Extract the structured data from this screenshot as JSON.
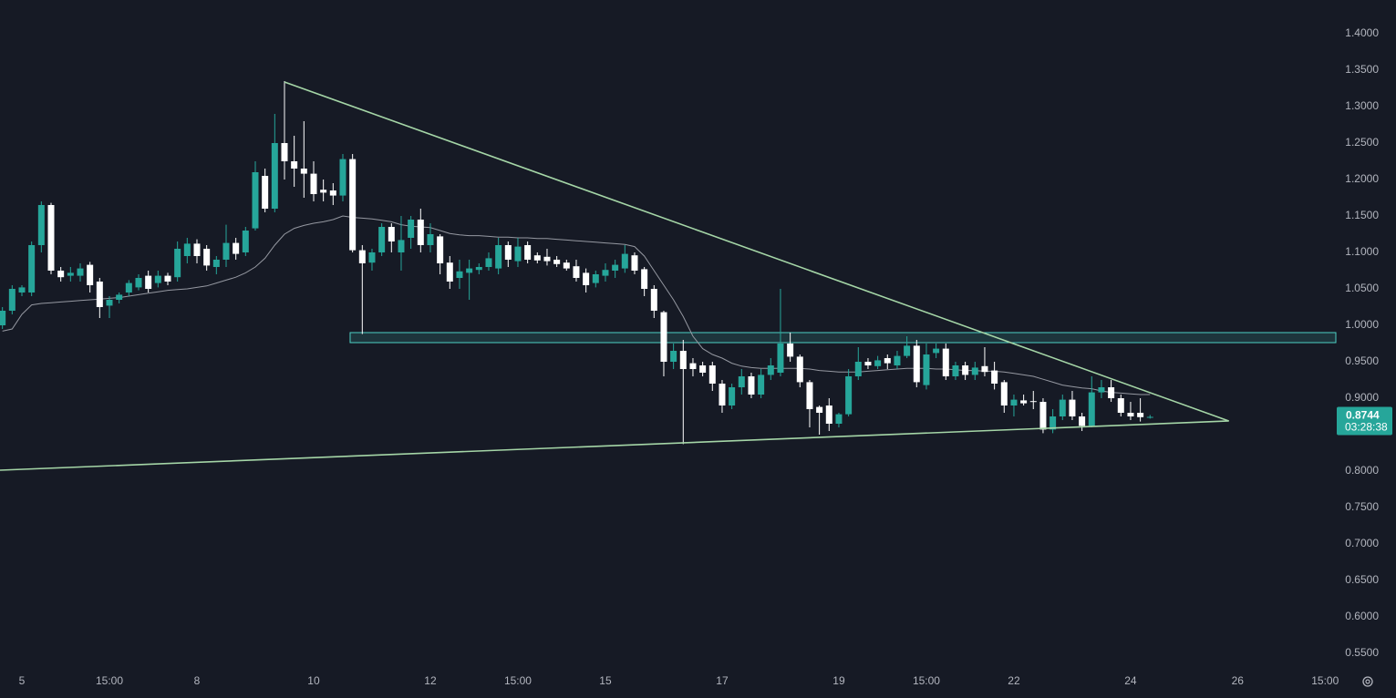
{
  "chart_data": {
    "type": "candlestick",
    "x": [
      -2,
      -1,
      0,
      1,
      2,
      3,
      4,
      5,
      6,
      7,
      8,
      9,
      10,
      11,
      12,
      13,
      14,
      15,
      16,
      17,
      18,
      19,
      20,
      21,
      22,
      23,
      24,
      25,
      26,
      27,
      28,
      29,
      30,
      31,
      32,
      33,
      34,
      35,
      36,
      37,
      38,
      39,
      40,
      41,
      42,
      43,
      44,
      45,
      46,
      47,
      48,
      49,
      50,
      51,
      52,
      53,
      54,
      55,
      56,
      57,
      58,
      59,
      60,
      61,
      62,
      63,
      64,
      65,
      66,
      67,
      68,
      69,
      70,
      71,
      72,
      73,
      74,
      75,
      76,
      77,
      78,
      79,
      80,
      81,
      82,
      83,
      84,
      85,
      86,
      87,
      88,
      89,
      90,
      91,
      92,
      93,
      94,
      95,
      96,
      97,
      98,
      99,
      100,
      101,
      102,
      103,
      104,
      105,
      106,
      107,
      108,
      109,
      110,
      111,
      112,
      113,
      114,
      115,
      116
    ],
    "open": [
      1.0,
      1.02,
      1.045,
      1.045,
      1.11,
      1.165,
      1.075,
      1.068,
      1.068,
      1.083,
      1.06,
      1.027,
      1.035,
      1.045,
      1.052,
      1.068,
      1.058,
      1.068,
      1.066,
      1.095,
      1.112,
      1.105,
      1.08,
      1.09,
      1.113,
      1.1,
      1.133,
      1.205,
      1.16,
      1.25,
      1.225,
      1.215,
      1.208,
      1.186,
      1.185,
      1.178,
      1.228,
      1.103,
      1.086,
      1.1,
      1.135,
      1.1,
      1.12,
      1.145,
      1.11,
      1.122,
      1.086,
      1.065,
      1.072,
      1.076,
      1.08,
      1.078,
      1.11,
      1.088,
      1.11,
      1.096,
      1.094,
      1.09,
      1.086,
      1.081,
      1.072,
      1.058,
      1.068,
      1.075,
      1.078,
      1.096,
      1.077,
      1.05,
      1.018,
      0.95,
      0.965,
      0.948,
      0.945,
      0.945,
      0.92,
      0.89,
      0.915,
      0.93,
      0.905,
      0.932,
      0.935,
      0.975,
      0.957,
      0.922,
      0.888,
      0.89,
      0.865,
      0.878,
      0.93,
      0.95,
      0.944,
      0.955,
      0.945,
      0.958,
      0.972,
      0.918,
      0.962,
      0.968,
      0.93,
      0.945,
      0.932,
      0.944,
      0.938,
      0.922,
      0.89,
      0.897,
      0.896,
      0.895,
      0.857,
      0.875,
      0.898,
      0.875,
      0.862,
      0.908,
      0.915,
      0.9,
      0.88,
      0.88,
      0.874
    ],
    "high": [
      1.025,
      1.055,
      1.055,
      1.115,
      1.17,
      1.168,
      1.08,
      1.08,
      1.085,
      1.087,
      1.065,
      1.04,
      1.045,
      1.062,
      1.07,
      1.075,
      1.075,
      1.072,
      1.115,
      1.12,
      1.118,
      1.11,
      1.095,
      1.138,
      1.12,
      1.135,
      1.225,
      1.215,
      1.29,
      1.335,
      1.26,
      1.28,
      1.225,
      1.2,
      1.195,
      1.235,
      1.235,
      1.11,
      1.105,
      1.14,
      1.14,
      1.15,
      1.15,
      1.16,
      1.14,
      1.125,
      1.095,
      1.09,
      1.09,
      1.085,
      1.1,
      1.12,
      1.115,
      1.12,
      1.115,
      1.1,
      1.105,
      1.095,
      1.09,
      1.09,
      1.078,
      1.075,
      1.085,
      1.09,
      1.11,
      1.1,
      1.08,
      1.055,
      1.02,
      0.975,
      0.98,
      0.955,
      0.95,
      0.95,
      0.925,
      0.92,
      0.94,
      0.935,
      0.94,
      0.955,
      1.05,
      0.99,
      0.96,
      0.925,
      0.89,
      0.9,
      0.88,
      0.94,
      0.97,
      0.955,
      0.958,
      0.96,
      0.965,
      0.985,
      0.98,
      0.975,
      0.975,
      0.975,
      0.95,
      0.95,
      0.95,
      0.97,
      0.95,
      0.925,
      0.905,
      0.905,
      0.91,
      0.9,
      0.885,
      0.905,
      0.91,
      0.88,
      0.93,
      0.925,
      0.925,
      0.905,
      0.895,
      0.9,
      0.877
    ],
    "low": [
      0.995,
      1.015,
      1.04,
      1.04,
      1.1,
      1.07,
      1.06,
      1.06,
      1.06,
      1.045,
      1.01,
      1.01,
      1.03,
      1.04,
      1.048,
      1.045,
      1.052,
      1.055,
      1.06,
      1.085,
      1.085,
      1.075,
      1.07,
      1.08,
      1.09,
      1.095,
      1.13,
      1.155,
      1.155,
      1.2,
      1.19,
      1.175,
      1.17,
      1.17,
      1.165,
      1.17,
      1.1,
      0.988,
      1.075,
      1.095,
      1.1,
      1.075,
      1.105,
      1.1,
      1.1,
      1.07,
      1.05,
      1.05,
      1.035,
      1.07,
      1.075,
      1.07,
      1.08,
      1.08,
      1.085,
      1.085,
      1.082,
      1.08,
      1.075,
      1.06,
      1.045,
      1.052,
      1.06,
      1.065,
      1.072,
      1.07,
      1.04,
      1.01,
      0.93,
      0.94,
      0.837,
      0.93,
      0.93,
      0.91,
      0.88,
      0.885,
      0.905,
      0.9,
      0.9,
      0.925,
      0.93,
      0.95,
      0.915,
      0.86,
      0.85,
      0.855,
      0.86,
      0.875,
      0.925,
      0.94,
      0.94,
      0.94,
      0.94,
      0.955,
      0.915,
      0.912,
      0.955,
      0.925,
      0.925,
      0.925,
      0.925,
      0.93,
      0.912,
      0.88,
      0.875,
      0.89,
      0.885,
      0.852,
      0.852,
      0.87,
      0.87,
      0.855,
      0.86,
      0.9,
      0.895,
      0.875,
      0.87,
      0.868,
      0.872
    ],
    "close": [
      1.02,
      1.05,
      1.052,
      1.11,
      1.165,
      1.075,
      1.066,
      1.072,
      1.078,
      1.055,
      1.025,
      1.035,
      1.042,
      1.058,
      1.065,
      1.05,
      1.068,
      1.06,
      1.105,
      1.112,
      1.095,
      1.082,
      1.09,
      1.113,
      1.098,
      1.13,
      1.21,
      1.16,
      1.25,
      1.225,
      1.215,
      1.208,
      1.18,
      1.182,
      1.178,
      1.228,
      1.103,
      1.085,
      1.1,
      1.135,
      1.115,
      1.117,
      1.145,
      1.11,
      1.125,
      1.085,
      1.06,
      1.074,
      1.078,
      1.08,
      1.092,
      1.11,
      1.09,
      1.108,
      1.09,
      1.089,
      1.088,
      1.084,
      1.078,
      1.065,
      1.055,
      1.07,
      1.076,
      1.083,
      1.098,
      1.075,
      1.05,
      1.02,
      0.95,
      0.965,
      0.94,
      0.94,
      0.935,
      0.92,
      0.89,
      0.915,
      0.93,
      0.905,
      0.932,
      0.945,
      0.975,
      0.957,
      0.922,
      0.885,
      0.88,
      0.865,
      0.878,
      0.93,
      0.95,
      0.945,
      0.952,
      0.948,
      0.958,
      0.972,
      0.922,
      0.96,
      0.968,
      0.93,
      0.945,
      0.932,
      0.942,
      0.936,
      0.92,
      0.89,
      0.898,
      0.893,
      0.895,
      0.857,
      0.875,
      0.898,
      0.875,
      0.862,
      0.908,
      0.915,
      0.9,
      0.88,
      0.875,
      0.874,
      0.8744
    ],
    "up_color": "#26a69a",
    "down_color": "#ffffff",
    "ma": {
      "color": "#9598a1",
      "values": [
        0.992,
        0.995,
        1.015,
        1.028,
        1.03,
        1.031,
        1.032,
        1.033,
        1.034,
        1.035,
        1.036,
        1.037,
        1.038,
        1.04,
        1.042,
        1.044,
        1.046,
        1.048,
        1.049,
        1.05,
        1.052,
        1.054,
        1.058,
        1.062,
        1.066,
        1.072,
        1.08,
        1.092,
        1.11,
        1.125,
        1.133,
        1.137,
        1.14,
        1.142,
        1.145,
        1.15,
        1.148,
        1.147,
        1.146,
        1.144,
        1.142,
        1.138,
        1.136,
        1.135,
        1.134,
        1.13,
        1.126,
        1.124,
        1.123,
        1.123,
        1.122,
        1.121,
        1.121,
        1.12,
        1.12,
        1.119,
        1.119,
        1.118,
        1.117,
        1.116,
        1.115,
        1.114,
        1.113,
        1.112,
        1.111,
        1.108,
        1.095,
        1.075,
        1.055,
        1.035,
        1.012,
        0.985,
        0.968,
        0.96,
        0.955,
        0.948,
        0.944,
        0.942,
        0.941,
        0.941,
        0.941,
        0.941,
        0.941,
        0.94,
        0.938,
        0.937,
        0.936,
        0.936,
        0.936,
        0.937,
        0.938,
        0.939,
        0.94,
        0.941,
        0.941,
        0.941,
        0.94,
        0.94,
        0.939,
        0.938,
        0.938,
        0.937,
        0.937,
        0.936,
        0.934,
        0.932,
        0.93,
        0.926,
        0.922,
        0.918,
        0.916,
        0.914,
        0.913,
        0.91,
        0.908,
        0.907,
        0.906,
        0.905,
        0.905
      ]
    },
    "trendlines": [
      {
        "color": "#a5d6a7",
        "x": [
          27,
          124.1
        ],
        "y": [
          1.3338,
          0.8688
        ]
      },
      {
        "color": "#a5d6a7",
        "x": [
          -2.25,
          124.1
        ],
        "y": [
          0.80125,
          0.8688
        ]
      }
    ],
    "zone": {
      "color": "#4dd0c4",
      "x": [
        33.75,
        135.1
      ],
      "y": [
        0.97625,
        0.99
      ]
    },
    "xlim": [
      -2.25,
      135.1
    ],
    "ylim": [
      0.5275,
      1.44625
    ],
    "yticks": [
      {
        "value": 0.55,
        "label": "0.5500"
      },
      {
        "value": 0.6,
        "label": "0.6000"
      },
      {
        "value": 0.65,
        "label": "0.6500"
      },
      {
        "value": 0.7,
        "label": "0.7000"
      },
      {
        "value": 0.75,
        "label": "0.7500"
      },
      {
        "value": 0.8,
        "label": "0.8000"
      },
      {
        "value": 0.9,
        "label": "0.9000"
      },
      {
        "value": 0.95,
        "label": "0.9500"
      },
      {
        "value": 1.0,
        "label": "1.0000"
      },
      {
        "value": 1.05,
        "label": "1.0500"
      },
      {
        "value": 1.1,
        "label": "1.1000"
      },
      {
        "value": 1.15,
        "label": "1.1500"
      },
      {
        "value": 1.2,
        "label": "1.2000"
      },
      {
        "value": 1.25,
        "label": "1.2500"
      },
      {
        "value": 1.3,
        "label": "1.3000"
      },
      {
        "value": 1.35,
        "label": "1.3500"
      },
      {
        "value": 1.4,
        "label": "1.4000"
      }
    ],
    "xticks": [
      {
        "value": 0,
        "label": "5"
      },
      {
        "value": 9,
        "label": "15:00"
      },
      {
        "value": 18,
        "label": "8"
      },
      {
        "value": 30,
        "label": "10"
      },
      {
        "value": 42,
        "label": "12"
      },
      {
        "value": 51,
        "label": "15:00"
      },
      {
        "value": 60,
        "label": "15"
      },
      {
        "value": 72,
        "label": "17"
      },
      {
        "value": 84,
        "label": "19"
      },
      {
        "value": 93,
        "label": "15:00"
      },
      {
        "value": 102,
        "label": "22"
      },
      {
        "value": 114,
        "label": "24"
      },
      {
        "value": 125,
        "label": "26"
      },
      {
        "value": 134,
        "label": "15:00"
      }
    ],
    "last_price": 0.8744,
    "countdown": "03:28:38"
  }
}
